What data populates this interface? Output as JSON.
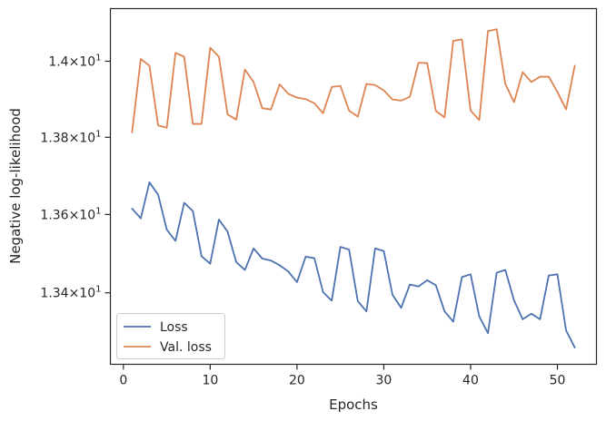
{
  "chart_data": {
    "type": "line",
    "xlabel": "Epochs",
    "ylabel": "Negative log-likelihood",
    "xlim": [
      -1.5,
      54.5
    ],
    "ylim": [
      13.22,
      14.14
    ],
    "y_scale": "log",
    "legend_placement": "lower-left",
    "grid": false,
    "x_ticks": [
      {
        "value": 0,
        "label": "0"
      },
      {
        "value": 10,
        "label": "10"
      },
      {
        "value": 20,
        "label": "20"
      },
      {
        "value": 30,
        "label": "30"
      },
      {
        "value": 40,
        "label": "40"
      },
      {
        "value": 50,
        "label": "50"
      }
    ],
    "y_ticks": [
      {
        "value": 13.4,
        "mantissa": "1.34",
        "base": "10",
        "exponent": "1"
      },
      {
        "value": 13.6,
        "mantissa": "1.36",
        "base": "10",
        "exponent": "1"
      },
      {
        "value": 13.8,
        "mantissa": "1.38",
        "base": "10",
        "exponent": "1"
      },
      {
        "value": 14.0,
        "mantissa": "1.4",
        "base": "10",
        "exponent": "1"
      }
    ],
    "x": [
      1,
      2,
      3,
      4,
      5,
      6,
      7,
      8,
      9,
      10,
      11,
      12,
      13,
      14,
      15,
      16,
      17,
      18,
      19,
      20,
      21,
      22,
      23,
      24,
      25,
      26,
      27,
      28,
      29,
      30,
      31,
      32,
      33,
      34,
      35,
      36,
      37,
      38,
      39,
      40,
      41,
      42,
      43,
      44,
      45,
      46,
      47,
      48,
      49,
      50,
      51,
      52
    ],
    "series": [
      {
        "name": "Loss",
        "color": "#4c72b0",
        "values": [
          13.615,
          13.59,
          13.683,
          13.651,
          13.561,
          13.532,
          13.63,
          13.609,
          13.493,
          13.474,
          13.587,
          13.556,
          13.478,
          13.458,
          13.513,
          13.487,
          13.482,
          13.47,
          13.454,
          13.427,
          13.492,
          13.488,
          13.402,
          13.38,
          13.517,
          13.51,
          13.379,
          13.353,
          13.513,
          13.506,
          13.395,
          13.362,
          13.421,
          13.416,
          13.432,
          13.419,
          13.353,
          13.327,
          13.44,
          13.447,
          13.34,
          13.298,
          13.451,
          13.458,
          13.381,
          13.333,
          13.347,
          13.333,
          13.444,
          13.447,
          13.305,
          13.262
        ]
      },
      {
        "name": "Val. loss",
        "color": "#dd8452",
        "values": [
          13.813,
          14.006,
          13.988,
          13.831,
          13.825,
          14.022,
          14.012,
          13.835,
          13.835,
          14.036,
          14.012,
          13.86,
          13.846,
          13.978,
          13.945,
          13.876,
          13.873,
          13.939,
          13.914,
          13.904,
          13.9,
          13.889,
          13.863,
          13.932,
          13.935,
          13.87,
          13.854,
          13.94,
          13.937,
          13.923,
          13.899,
          13.896,
          13.906,
          13.996,
          13.995,
          13.869,
          13.852,
          14.054,
          14.058,
          13.87,
          13.845,
          14.08,
          14.085,
          13.94,
          13.892,
          13.971,
          13.945,
          13.959,
          13.959,
          13.919,
          13.873,
          13.988
        ]
      }
    ]
  }
}
